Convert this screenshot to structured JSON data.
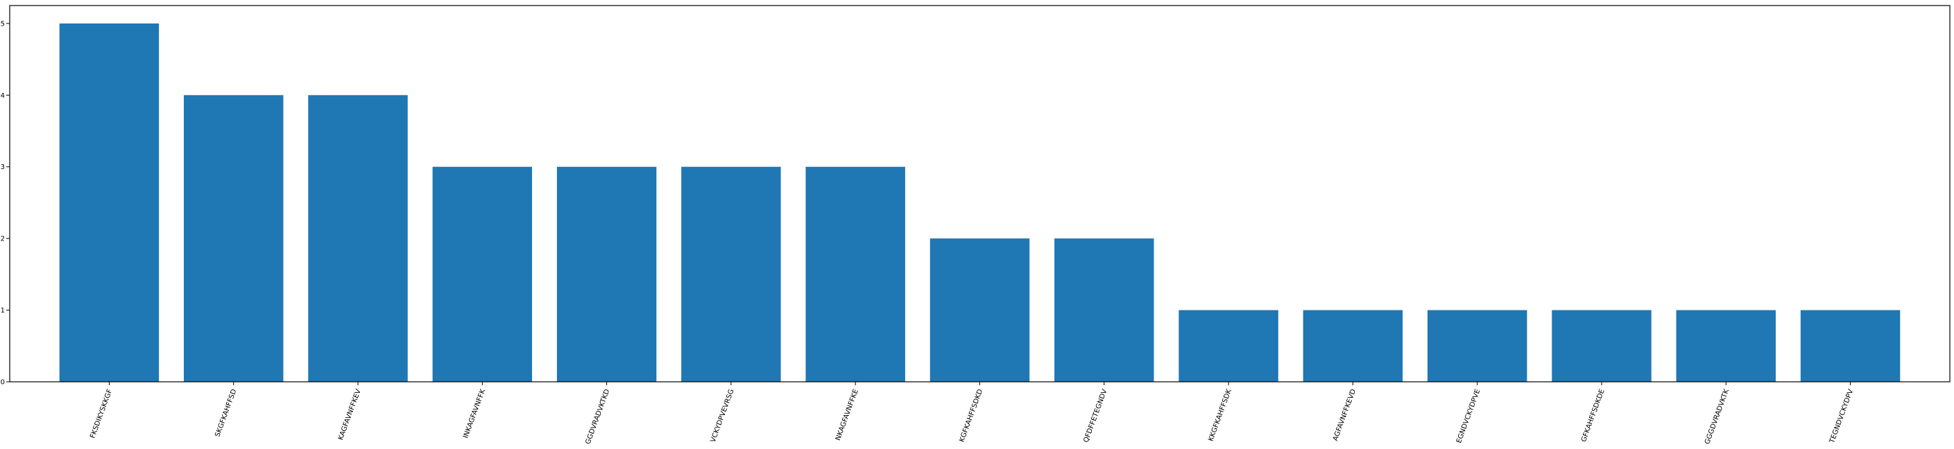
{
  "chart_data": {
    "type": "bar",
    "categories": [
      "FKSDIKYSKKGF",
      "SKGFKAHFFSD",
      "KAGFAVNFFKEV",
      "INKAGFAVNFFK",
      "GGDVRADVKTKD",
      "VCKYDPVEVRSG",
      "NKAGFAVNFFKE",
      "KGFKAHFFSDKD",
      "QFDFFETEGNDV",
      "KKGFKAHFFSDK",
      "AGFAVNFFKEVD",
      "EGNDVCKYDPVE",
      "GFKAHFFSDKDE",
      "GGGDVRADVKTK",
      "TEGNDVCKYDPV"
    ],
    "values": [
      5,
      4,
      4,
      3,
      3,
      3,
      3,
      2,
      2,
      1,
      1,
      1,
      1,
      1,
      1
    ],
    "title": "",
    "xlabel": "",
    "ylabel": "",
    "ylim": [
      0,
      5.25
    ],
    "yticks": [
      0,
      1,
      2,
      3,
      4,
      5
    ],
    "grid": false,
    "bar_color": "#1f77b4",
    "axis_color": "#000000",
    "background": "#ffffff"
  }
}
